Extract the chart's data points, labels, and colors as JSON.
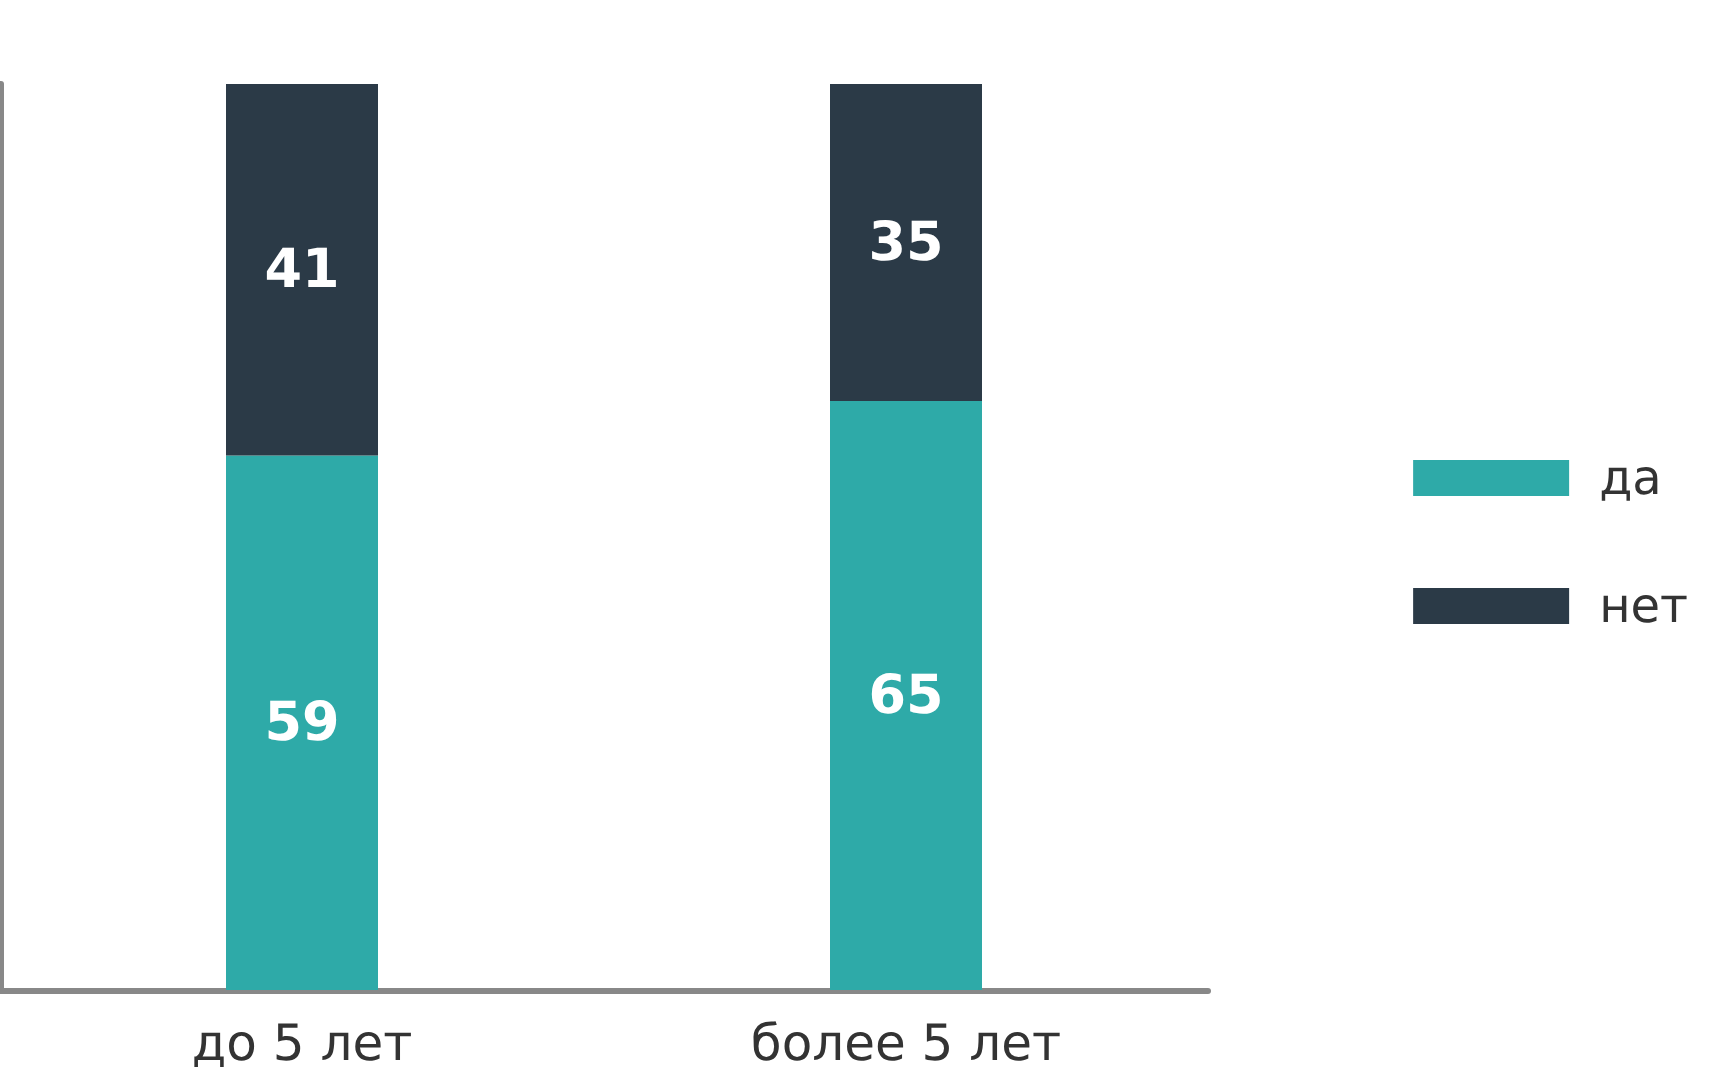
{
  "chart_data": {
    "type": "bar",
    "stacked": true,
    "categories": [
      "до 5 лет",
      "более 5 лет"
    ],
    "series": [
      {
        "name": "да",
        "color": "#2eaaa8",
        "values": [
          59,
          65
        ]
      },
      {
        "name": "нет",
        "color": "#2b3a47",
        "values": [
          41,
          35
        ]
      }
    ],
    "data_labels": true,
    "legend": "right",
    "grid": false,
    "tick_labels": "x"
  }
}
